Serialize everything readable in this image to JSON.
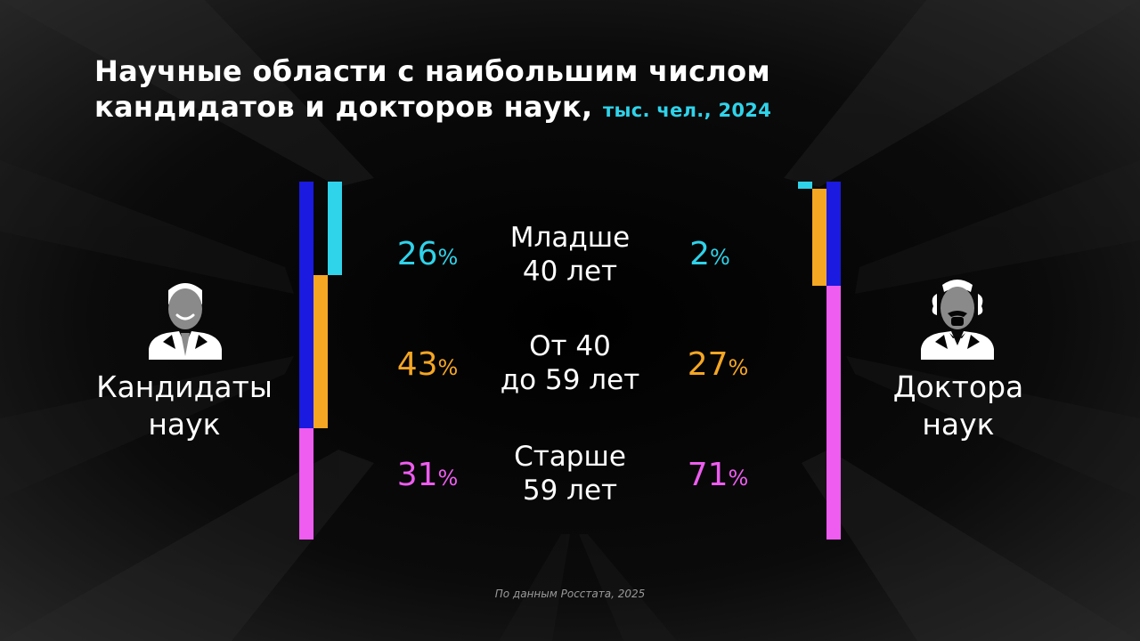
{
  "title": {
    "line1": "Научные области с наибольшим числом",
    "line2": "кандидатов и докторов наук,",
    "unit": "тыс. чел., 2024"
  },
  "groups": {
    "left_line1": "Кандидаты",
    "left_line2": "наук",
    "right_line1": "Доктора",
    "right_line2": "наук"
  },
  "bands": [
    {
      "line1": "Младше",
      "line2": "40 лет"
    },
    {
      "line1": "От 40",
      "line2": "до 59 лет"
    },
    {
      "line1": "Старше",
      "line2": "59 лет"
    }
  ],
  "source": "По данным Росстата, 2025",
  "icons": {
    "left": "candidate-person-icon",
    "right": "doctor-professor-icon"
  },
  "colors": {
    "under40": "#2fd3ea",
    "from40to59": "#f5a623",
    "over59": "#ee5cf0",
    "accent_blue": "#1a1ae0"
  },
  "chart_data": {
    "type": "bar",
    "stacked": true,
    "categories": [
      "Кандидаты наук",
      "Доктора наук"
    ],
    "series": [
      {
        "name": "Младше 40 лет",
        "values": [
          26,
          2
        ],
        "color": "#2fd3ea"
      },
      {
        "name": "От 40 до 59 лет",
        "values": [
          43,
          27
        ],
        "color": "#f5a623"
      },
      {
        "name": "Старше 59 лет",
        "values": [
          31,
          71
        ],
        "color": "#ee5cf0"
      }
    ],
    "labels_left": [
      "26",
      "43",
      "31"
    ],
    "labels_right": [
      "2",
      "27",
      "71"
    ],
    "percent_sign": "%"
  }
}
